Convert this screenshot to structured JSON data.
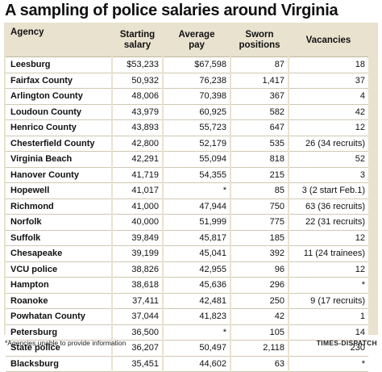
{
  "title": "A sampling of police salaries around Virginia",
  "headers": {
    "agency": "Agency",
    "starting_1": "Starting",
    "starting_2": "salary",
    "average_1": "Average",
    "average_2": "pay",
    "sworn_1": "Sworn",
    "sworn_2": "positions",
    "vacancies": "Vacancies"
  },
  "rows": [
    {
      "agency": "Leesburg",
      "starting": "$53,233",
      "average": "$67,598",
      "sworn": "87",
      "vacancies": "18"
    },
    {
      "agency": "Fairfax County",
      "starting": "50,932",
      "average": "76,238",
      "sworn": "1,417",
      "vacancies": "37"
    },
    {
      "agency": "Arlington County",
      "starting": "48,006",
      "average": "70,398",
      "sworn": "367",
      "vacancies": "4"
    },
    {
      "agency": "Loudoun County",
      "starting": "43,979",
      "average": "60,925",
      "sworn": "582",
      "vacancies": "42"
    },
    {
      "agency": "Henrico County",
      "starting": "43,893",
      "average": "55,723",
      "sworn": "647",
      "vacancies": "12"
    },
    {
      "agency": "Chesterfield County",
      "starting": "42,800",
      "average": "52,179",
      "sworn": "535",
      "vacancies": "26 (34 recruits)"
    },
    {
      "agency": "Virginia Beach",
      "starting": "42,291",
      "average": "55,094",
      "sworn": "818",
      "vacancies": "52"
    },
    {
      "agency": "Hanover County",
      "starting": "41,719",
      "average": "54,355",
      "sworn": "215",
      "vacancies": "3"
    },
    {
      "agency": "Hopewell",
      "starting": "41,017",
      "average": "*",
      "sworn": "85",
      "vacancies": "3 (2 start Feb.1)"
    },
    {
      "agency": "Richmond",
      "starting": "41,000",
      "average": "47,944",
      "sworn": "750",
      "vacancies": "63 (36 recruits)"
    },
    {
      "agency": "Norfolk",
      "starting": "40,000",
      "average": "51,999",
      "sworn": "775",
      "vacancies": "22 (31 recruits)"
    },
    {
      "agency": "Suffolk",
      "starting": "39,849",
      "average": "45,817",
      "sworn": "185",
      "vacancies": "12"
    },
    {
      "agency": "Chesapeake",
      "starting": "39,199",
      "average": "45,041",
      "sworn": "392",
      "vacancies": "11 (24 trainees)"
    },
    {
      "agency": "VCU police",
      "starting": "38,826",
      "average": "42,955",
      "sworn": "96",
      "vacancies": "12"
    },
    {
      "agency": "Hampton",
      "starting": "38,618",
      "average": "45,636",
      "sworn": "296",
      "vacancies": "*"
    },
    {
      "agency": "Roanoke",
      "starting": "37,411",
      "average": "42,481",
      "sworn": "250",
      "vacancies": "9 (17 recruits)"
    },
    {
      "agency": "Powhatan County",
      "starting": "37,044",
      "average": "41,823",
      "sworn": "42",
      "vacancies": "1"
    },
    {
      "agency": "Petersburg",
      "starting": "36,500",
      "average": "*",
      "sworn": "105",
      "vacancies": "14"
    },
    {
      "agency": "State police",
      "starting": "36,207",
      "average": "50,497",
      "sworn": "2,118",
      "vacancies": "230"
    },
    {
      "agency": "Blacksburg",
      "starting": "35,451",
      "average": "44,602",
      "sworn": "63",
      "vacancies": "*"
    }
  ],
  "footnote": "*Agencies unable to provide information",
  "credit": "TIMES-DISPATCH"
}
